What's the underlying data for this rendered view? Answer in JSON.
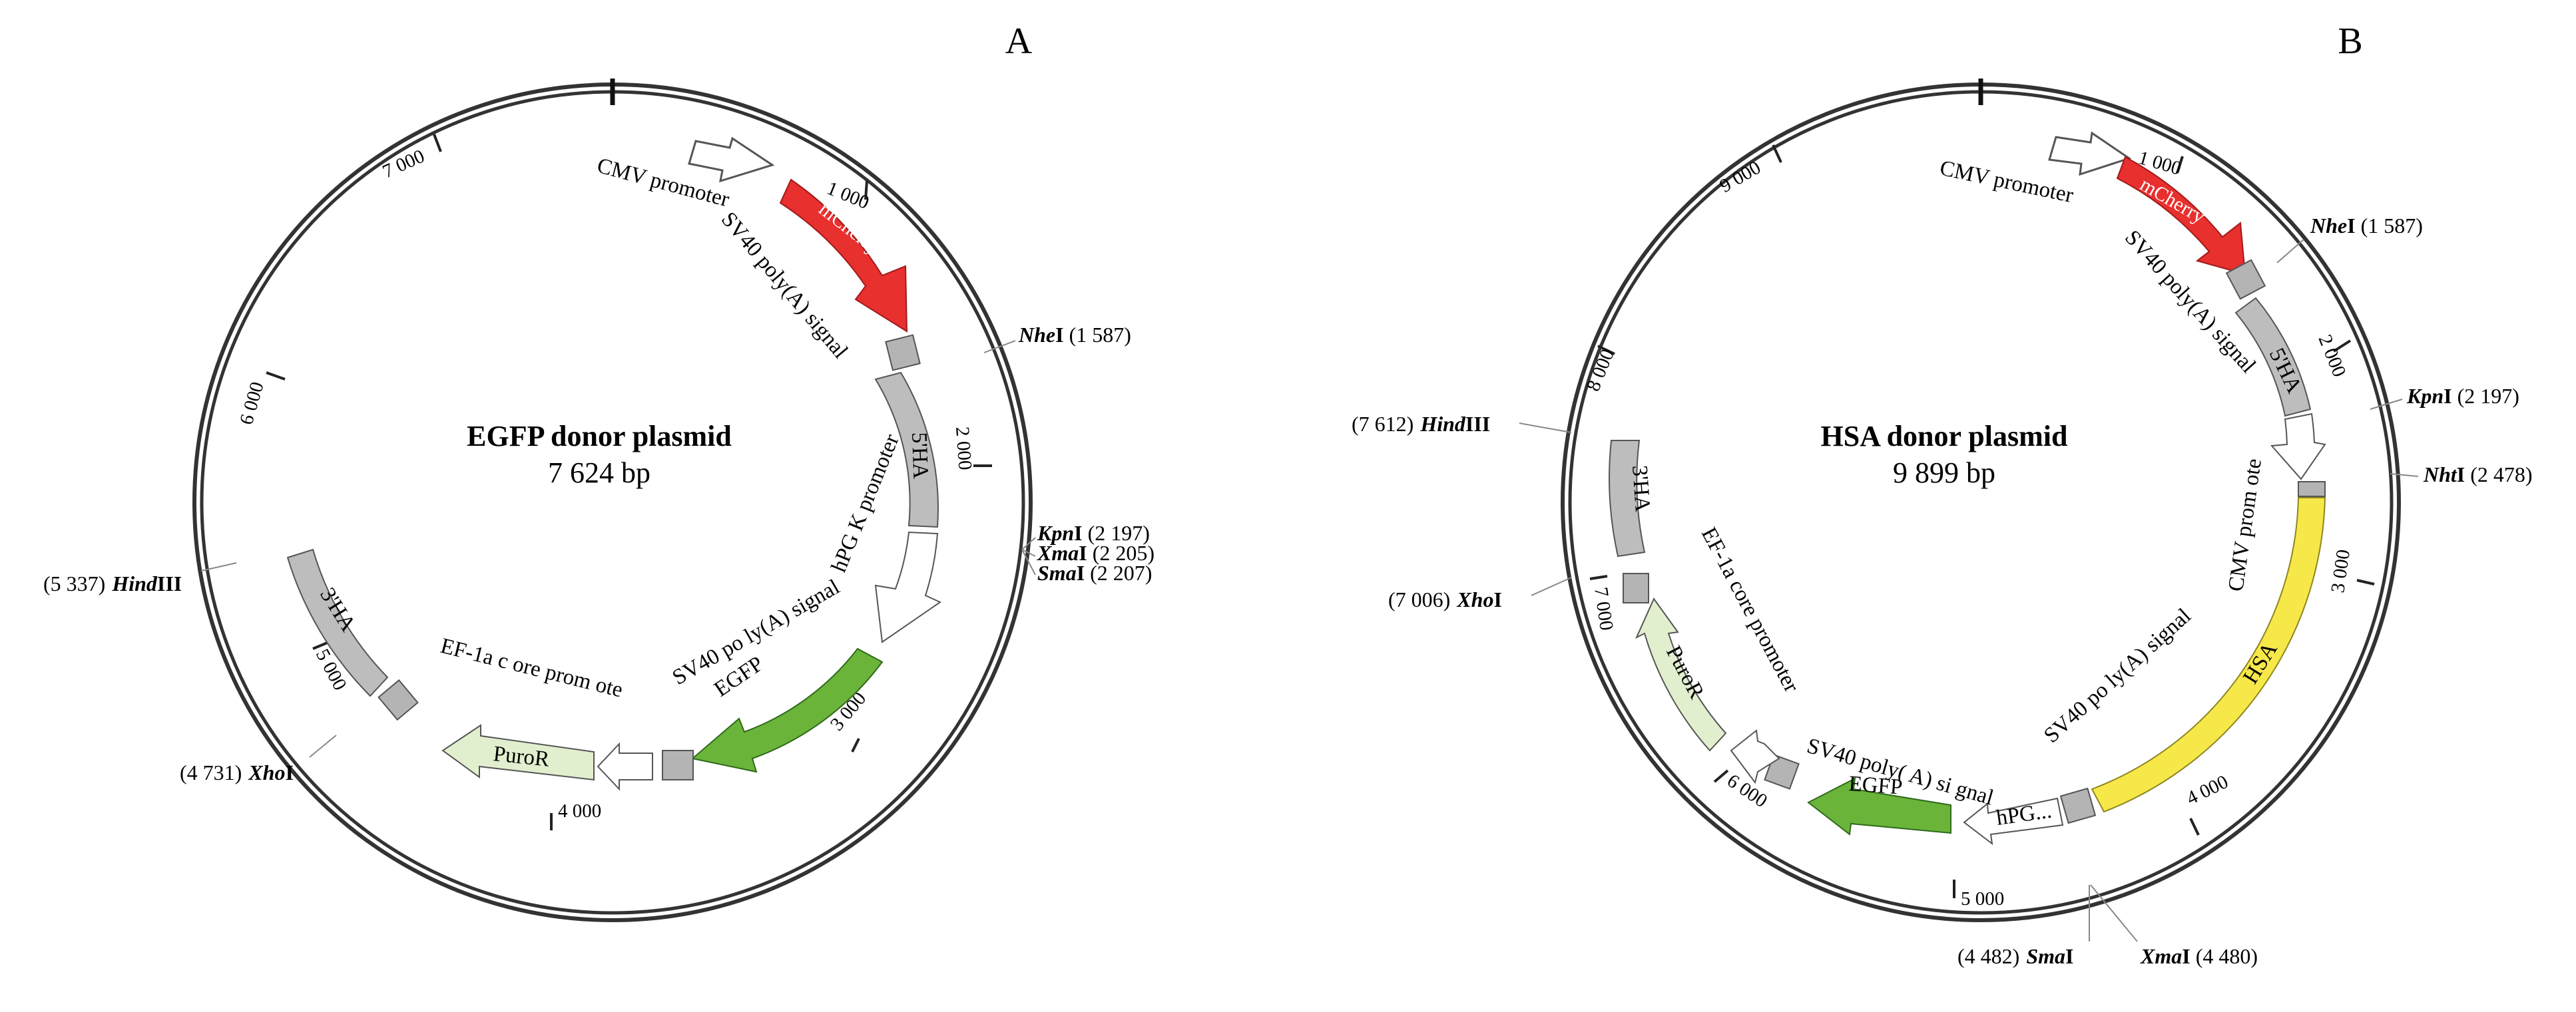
{
  "panels": [
    {
      "letter": "A",
      "title": "EGFP donor plasmid",
      "size": "7 624 bp",
      "ticks": [
        "1 000",
        "2 000",
        "3 000",
        "4 000",
        "5 000",
        "6 000",
        "7 000"
      ],
      "features": {
        "cmv": "CMV promoter",
        "mcherry": "mCherry",
        "sv40_1": "SV40 poly(A) signal",
        "ha5": "5'HA",
        "hpgk": "hPG K promoter",
        "sv40_2": "SV40 po ly(A) signal",
        "egfp": "EGFP",
        "ef1a": "EF-1a c ore prom ote",
        "puror": "PuroR",
        "ha3": "3'HA"
      },
      "sites": {
        "nhe": {
          "name": "Nhe",
          "suffix": "I",
          "pos": "(1 587)"
        },
        "kpn": {
          "name": "Kpn",
          "suffix": "I",
          "pos": "(2 197)"
        },
        "xma": {
          "name": "Xma",
          "suffix": "I",
          "pos": "(2 205)"
        },
        "sma": {
          "name": "Sma",
          "suffix": "I",
          "pos": "(2 207)"
        },
        "hind": {
          "name": "Hind",
          "suffix": "III",
          "pos": "(5 337)"
        },
        "xho": {
          "name": "Xho",
          "suffix": "I",
          "pos": "(4 731)"
        }
      }
    },
    {
      "letter": "B",
      "title": "HSA donor plasmid",
      "size": "9 899 bp",
      "ticks": [
        "1 000",
        "2 000",
        "3 000",
        "4 000",
        "5 000",
        "6 000",
        "7 000",
        "8 000",
        "9 000"
      ],
      "features": {
        "cmv1": "CMV promoter",
        "mcherry": "mCherry",
        "sv40_1": "SV40 poly(A) signal",
        "ha5": "5'HA",
        "cmv2": "CMV prom ote",
        "hsa": "HSA",
        "sv40_2": "SV40 po ly(A) signal",
        "hpg": "hPG...",
        "egfp": "EGFP",
        "sv40_3": "SV40 poly( A) si gnal",
        "ef1a": "EF-1a core promoter",
        "puror": "PuroR",
        "ha3": "3'HA"
      },
      "sites": {
        "nhe": {
          "name": "Nhe",
          "suffix": "I",
          "pos": "(1 587)"
        },
        "kpn": {
          "name": "Kpn",
          "suffix": "I",
          "pos": "(2 197)"
        },
        "nht": {
          "name": "Nht",
          "suffix": "I",
          "pos": "(2 478)"
        },
        "hind": {
          "name": "Hind",
          "suffix": "III",
          "pos": "(7 612)"
        },
        "xho": {
          "name": "Xho",
          "suffix": "I",
          "pos": "(7 006)"
        },
        "sma": {
          "name": "Sma",
          "suffix": "I",
          "pos": "(4 482)"
        },
        "xma": {
          "name": "Xma",
          "suffix": "I",
          "pos": "(4 480)"
        }
      }
    }
  ],
  "colors": {
    "mcherry": "#e8302e",
    "egfp": "#6ab43a",
    "hsa": "#f7e84a",
    "puror": "#e2efcf",
    "ha": "#bdbdbd",
    "grey_box": "#b4b4b4",
    "promoter": "#ffffff",
    "ring": "#333333"
  }
}
